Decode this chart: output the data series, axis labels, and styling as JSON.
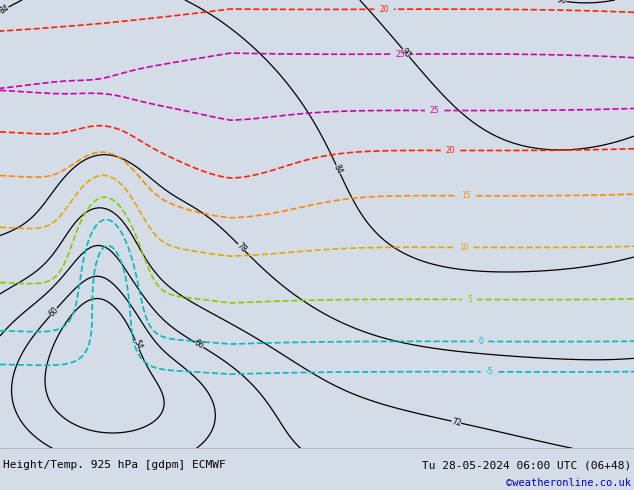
{
  "title_left": "Height/Temp. 925 hPa [gdpm] ECMWF",
  "title_right": "Tu 28-05-2024 06:00 UTC (06+48)",
  "credit": "©weatheronline.co.uk",
  "ocean_color": "#d4dce8",
  "land_color": "#c8c8c8",
  "green_land_color": "#c8f090",
  "fig_width": 6.34,
  "fig_height": 4.9,
  "dpi": 100,
  "bottom_bar_color": "#e8e8e8",
  "title_fontsize": 8.0,
  "credit_fontsize": 7.5,
  "credit_color": "#0000cc",
  "lon_min": -90,
  "lon_max": 20,
  "lat_min": -60,
  "lat_max": 15
}
